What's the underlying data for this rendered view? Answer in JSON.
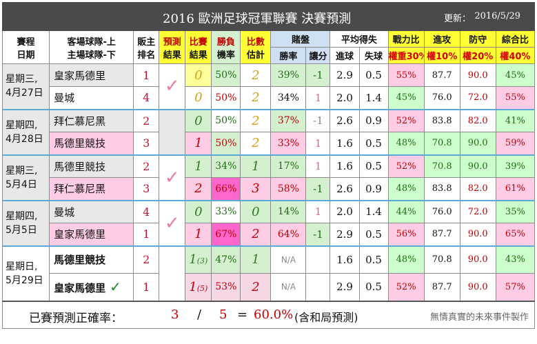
{
  "title": "2016 歐洲足球冠軍聯賽   決賽預測",
  "update_label": "更新：",
  "update_date": "2016/5/29",
  "headers": {
    "schedule_1": "賽程",
    "schedule_2": "日期",
    "teams_1": "客場球隊-上",
    "teams_2": "主場球隊-下",
    "rank_1": "販主",
    "rank_2": "排名",
    "predict_1": "預測",
    "predict_2": "結果",
    "score_1": "比賽",
    "score_2": "結果",
    "winrate_1": "勝負",
    "winrate_2": "機率",
    "scorecount_1": "比數",
    "scorecount_2": "估計",
    "betting": "賭盤",
    "bet_win": "勝率",
    "bet_handicap": "讓分",
    "avg": "平均得失",
    "avg_goal": "進球",
    "avg_lost": "失球",
    "power": "戰力比",
    "power_w": "權重30%",
    "attack": "進攻",
    "attack_w": "權10%",
    "defense": "防守",
    "defense_w": "權20%",
    "overall": "綜合比",
    "overall_w": "權40%"
  },
  "matches": [
    {
      "date": "星期三,\n4月27日",
      "check": "✓",
      "rows": [
        {
          "team": "皇家馬德里",
          "rank": "1",
          "score": "0",
          "winrate": "50%",
          "est": "2",
          "betwin": "39%",
          "handi": "-1",
          "goal": "2.9",
          "lost": "0.5",
          "power": "55%",
          "attack": "87.7",
          "defense": "90.0",
          "overall": "45%"
        },
        {
          "team": "曼城",
          "rank": "4",
          "score": "0",
          "winrate": "50%",
          "est": "2",
          "betwin": "34%",
          "handi": "1",
          "goal": "2.0",
          "lost": "1.4",
          "power": "45%",
          "attack": "76.0",
          "defense": "72.0",
          "overall": "55%"
        }
      ]
    },
    {
      "date": "星期四,\n4月28日",
      "check": "",
      "rows": [
        {
          "team": "拜仁慕尼黑",
          "rank": "2",
          "score": "0",
          "winrate": "50%",
          "est": "2",
          "betwin": "37%",
          "handi": "-1",
          "goal": "2.6",
          "lost": "0.9",
          "power": "52%",
          "attack": "83.8",
          "defense": "82.0",
          "overall": "41%"
        },
        {
          "team": "馬德里競技",
          "rank": "3",
          "score": "1",
          "winrate": "50%",
          "est": "2",
          "betwin": "33%",
          "handi": "1",
          "goal": "1.6",
          "lost": "0.5",
          "power": "48%",
          "attack": "70.8",
          "defense": "90.0",
          "overall": "59%"
        }
      ]
    },
    {
      "date": "星期三,\n5月4日",
      "check": "✓",
      "rows": [
        {
          "team": "馬德里競技",
          "rank": "2",
          "score": "1",
          "winrate": "34%",
          "est": "1",
          "betwin": "17%",
          "handi": "1",
          "goal": "1.6",
          "lost": "0.5",
          "power": "52%",
          "attack": "70.8",
          "defense": "90.0",
          "overall": "39%"
        },
        {
          "team": "拜仁慕尼黑",
          "rank": "3",
          "score": "2",
          "winrate": "66%",
          "est": "3",
          "betwin": "58%",
          "handi": "-1",
          "goal": "2.6",
          "lost": "0.9",
          "power": "48%",
          "attack": "83.8",
          "defense": "82.0",
          "overall": "61%"
        }
      ]
    },
    {
      "date": "星期四,\n5月5日",
      "check": "✓",
      "rows": [
        {
          "team": "曼城",
          "rank": "4",
          "score": "0",
          "winrate": "33%",
          "est": "0",
          "betwin": "14%",
          "handi": "1",
          "goal": "2.0",
          "lost": "1.4",
          "power": "44%",
          "attack": "76.0",
          "defense": "72.0",
          "overall": "35%"
        },
        {
          "team": "皇家馬德里",
          "rank": "1",
          "score": "1",
          "winrate": "67%",
          "est": "2",
          "betwin": "64%",
          "handi": "-1",
          "goal": "2.9",
          "lost": "0.5",
          "power": "56%",
          "attack": "87.7",
          "defense": "90.0",
          "overall": "65%"
        }
      ]
    },
    {
      "date": "星期日,\n5月29日",
      "check": "",
      "rows": [
        {
          "team": "馬德里競技",
          "rank": "2",
          "score": "1",
          "score_sub": "(3)",
          "winrate": "47%",
          "est": "1",
          "betwin": "N/A",
          "handi": "",
          "goal": "1.6",
          "lost": "0.5",
          "power": "48%",
          "attack": "70.8",
          "defense": "90.0",
          "overall": "43%"
        },
        {
          "team": "皇家馬德里",
          "rank": "1",
          "score": "1",
          "score_sub": "(5)",
          "winrate": "53%",
          "est": "2",
          "betwin": "N/A",
          "handi": "",
          "goal": "2.9",
          "lost": "0.5",
          "power": "52%",
          "attack": "87.7",
          "defense": "90.0",
          "overall": "57%",
          "winner_mark": "✓"
        }
      ]
    }
  ],
  "footer": {
    "label": "已賽預測正確率：",
    "correct": "3",
    "slash": "/",
    "total": "5",
    "equals": "=",
    "rate": "60.0%",
    "note": "(含和局預測)",
    "credit": "無情真實的未來事件製作"
  }
}
